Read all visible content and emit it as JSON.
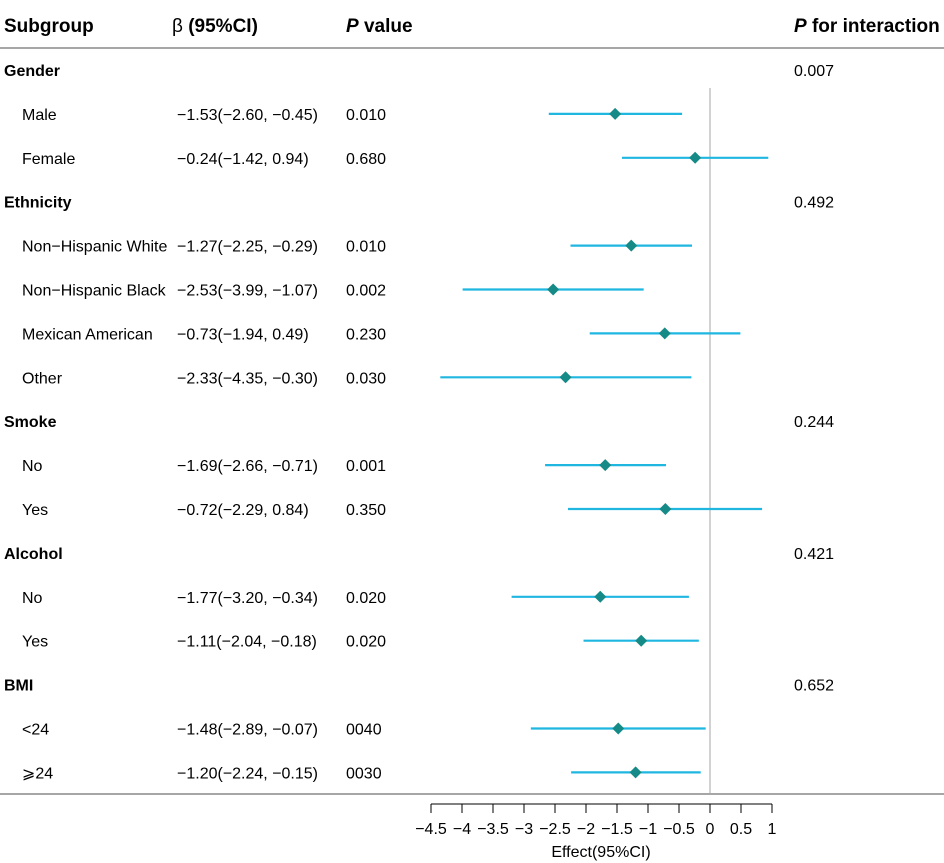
{
  "chart_data": {
    "type": "forest",
    "columns": {
      "subgroup": "Subgroup",
      "beta_symbol": "β",
      "beta_rest": " (95%CI)",
      "p_italic": "P",
      "p_rest": " value",
      "pint_italic": "P",
      "pint_rest": " for interaction"
    },
    "xlabel": "Effect(95%CI)",
    "xlim": [
      -4.5,
      1
    ],
    "ticks": [
      -4.5,
      -4,
      -3.5,
      -3,
      -2.5,
      -2,
      -1.5,
      -1,
      -0.5,
      0,
      0.5,
      1
    ],
    "tick_labels": [
      "−4.5",
      "−4",
      "−3.5",
      "−3",
      "−2.5",
      "−2",
      "−1.5",
      "−1",
      "−0.5",
      "0",
      "0.5",
      "1"
    ],
    "reference_line": 0,
    "colors": {
      "ci_line": "#1fb6e0",
      "point": "#168a86",
      "rule": "#a6a6a6",
      "axis": "#000000"
    },
    "rows": [
      {
        "kind": "group",
        "label": "Gender",
        "p_interaction": "0.007"
      },
      {
        "kind": "item",
        "label": "Male",
        "estimate": -1.53,
        "lower": -2.6,
        "upper": -0.45,
        "ci_text": "−1.53(−2.60, −0.45)",
        "p": "0.010"
      },
      {
        "kind": "item",
        "label": "Female",
        "estimate": -0.24,
        "lower": -1.42,
        "upper": 0.94,
        "ci_text": "−0.24(−1.42, 0.94)",
        "p": "0.680"
      },
      {
        "kind": "group",
        "label": "Ethnicity",
        "p_interaction": "0.492"
      },
      {
        "kind": "item",
        "label": "Non−Hispanic White",
        "estimate": -1.27,
        "lower": -2.25,
        "upper": -0.29,
        "ci_text": "−1.27(−2.25, −0.29)",
        "p": "0.010"
      },
      {
        "kind": "item",
        "label": "Non−Hispanic Black",
        "estimate": -2.53,
        "lower": -3.99,
        "upper": -1.07,
        "ci_text": "−2.53(−3.99, −1.07)",
        "p": "0.002"
      },
      {
        "kind": "item",
        "label": "Mexican American",
        "estimate": -0.73,
        "lower": -1.94,
        "upper": 0.49,
        "ci_text": "−0.73(−1.94, 0.49)",
        "p": "0.230"
      },
      {
        "kind": "item",
        "label": "Other",
        "estimate": -2.33,
        "lower": -4.35,
        "upper": -0.3,
        "ci_text": "−2.33(−4.35, −0.30)",
        "p": "0.030"
      },
      {
        "kind": "group",
        "label": "Smoke",
        "p_interaction": "0.244"
      },
      {
        "kind": "item",
        "label": "No",
        "estimate": -1.69,
        "lower": -2.66,
        "upper": -0.71,
        "ci_text": "−1.69(−2.66, −0.71)",
        "p": "0.001"
      },
      {
        "kind": "item",
        "label": "Yes",
        "estimate": -0.72,
        "lower": -2.29,
        "upper": 0.84,
        "ci_text": "−0.72(−2.29, 0.84)",
        "p": "0.350"
      },
      {
        "kind": "group",
        "label": "Alcohol",
        "p_interaction": "0.421"
      },
      {
        "kind": "item",
        "label": "No",
        "estimate": -1.77,
        "lower": -3.2,
        "upper": -0.34,
        "ci_text": "−1.77(−3.20, −0.34)",
        "p": "0.020"
      },
      {
        "kind": "item",
        "label": "Yes",
        "estimate": -1.11,
        "lower": -2.04,
        "upper": -0.18,
        "ci_text": "−1.11(−2.04, −0.18)",
        "p": "0.020"
      },
      {
        "kind": "group",
        "label": "BMI",
        "p_interaction": "0.652"
      },
      {
        "kind": "item",
        "label": "<24",
        "estimate": -1.48,
        "lower": -2.89,
        "upper": -0.07,
        "ci_text": "−1.48(−2.89, −0.07)",
        "p": "0040"
      },
      {
        "kind": "item",
        "label": "⩾24",
        "estimate": -1.2,
        "lower": -2.24,
        "upper": -0.15,
        "ci_text": "−1.20(−2.24, −0.15)",
        "p": "0030"
      }
    ]
  }
}
